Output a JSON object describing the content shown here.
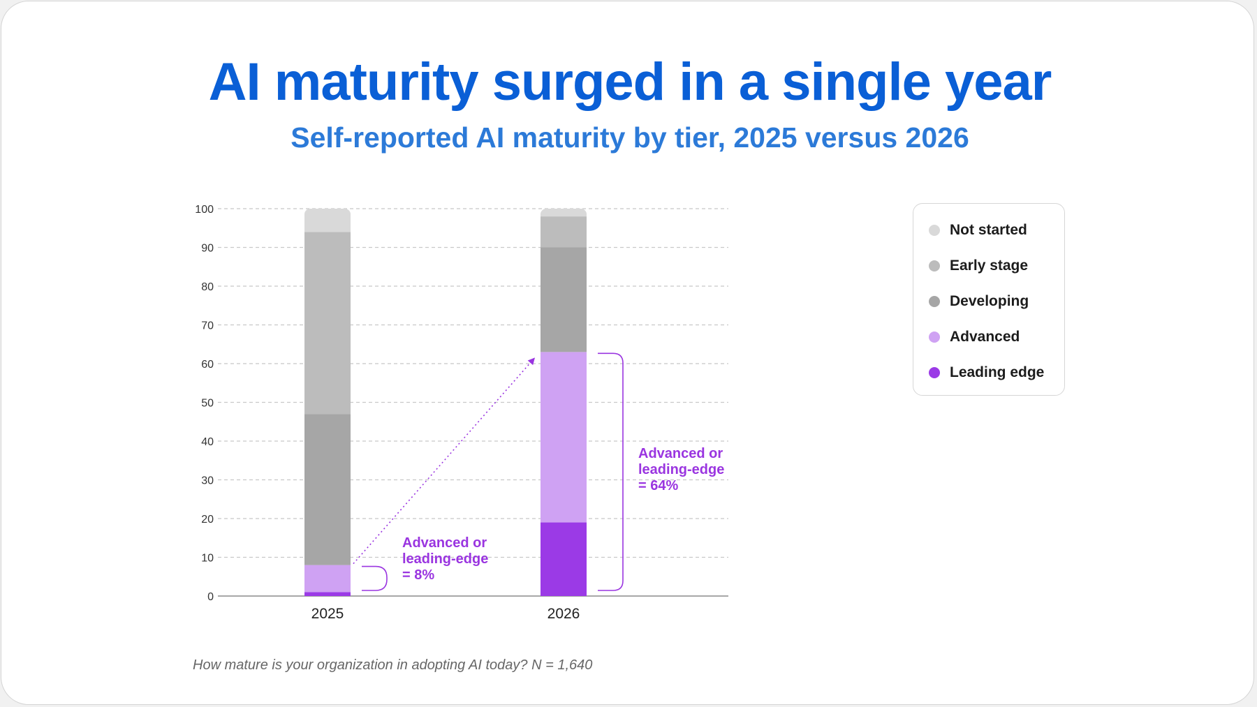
{
  "title": "AI maturity surged in a single year",
  "subtitle": "Self-reported AI maturity by tier, 2025 versus 2026",
  "footnote": "How mature is your organization in adopting AI today? N = 1,640",
  "colors": {
    "title": "#0a5fd6",
    "subtitle": "#2c7ad8",
    "annotation": "#9a35e0",
    "not_started": "#d9d9d9",
    "early_stage": "#bcbcbc",
    "developing": "#a6a6a6",
    "advanced": "#cfa2f3",
    "leading_edge": "#9b3ae6"
  },
  "legend": [
    {
      "label": "Not started",
      "color": "#d9d9d9"
    },
    {
      "label": "Early stage",
      "color": "#bcbcbc"
    },
    {
      "label": "Developing",
      "color": "#a6a6a6"
    },
    {
      "label": "Advanced",
      "color": "#cfa2f3"
    },
    {
      "label": "Leading edge",
      "color": "#9b3ae6"
    }
  ],
  "chart_data": {
    "type": "bar",
    "stacked": true,
    "title": "AI maturity surged in a single year",
    "subtitle": "Self-reported AI maturity by tier, 2025 versus 2026",
    "categories": [
      "2025",
      "2026"
    ],
    "ylim": [
      0,
      100
    ],
    "yticks": [
      0,
      10,
      20,
      30,
      40,
      50,
      60,
      70,
      80,
      90,
      100
    ],
    "grid": true,
    "legend_position": "right",
    "series": [
      {
        "name": "Leading edge",
        "color": "#9b3ae6",
        "values": [
          1,
          19
        ]
      },
      {
        "name": "Advanced",
        "color": "#cfa2f3",
        "values": [
          7,
          44
        ]
      },
      {
        "name": "Developing",
        "color": "#a6a6a6",
        "values": [
          39,
          27
        ]
      },
      {
        "name": "Early stage",
        "color": "#bcbcbc",
        "values": [
          47,
          8
        ]
      },
      {
        "name": "Not started",
        "color": "#d9d9d9",
        "values": [
          6,
          2
        ]
      }
    ],
    "annotations": [
      {
        "category": "2025",
        "lines": [
          "Advanced or",
          "leading-edge",
          "= 8%"
        ]
      },
      {
        "category": "2026",
        "lines": [
          "Advanced or",
          "leading-edge",
          "= 64%"
        ]
      }
    ]
  }
}
